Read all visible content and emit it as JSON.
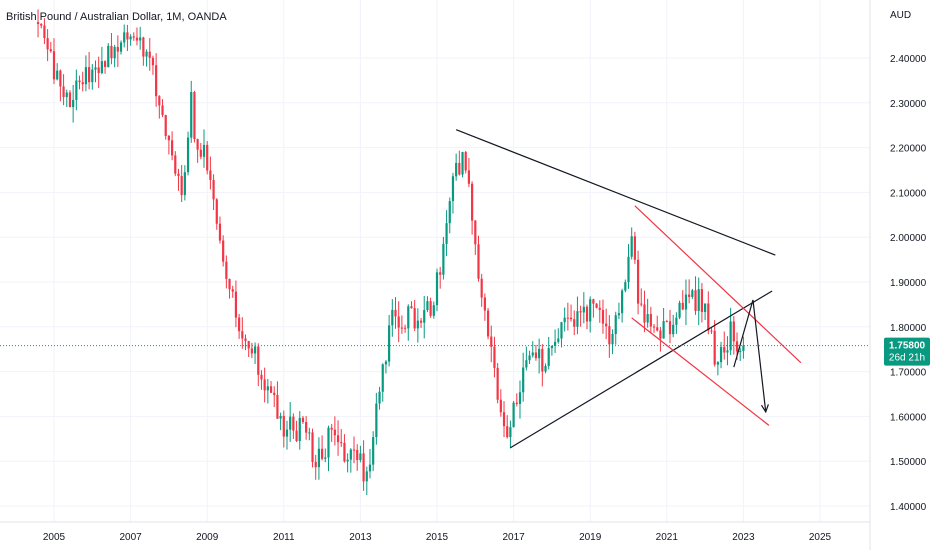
{
  "header": {
    "symbol_title": "British Pound / Australian Dollar, 1M, OANDA",
    "currency": "AUD"
  },
  "price_badge": {
    "price": "1.75800",
    "countdown": "26d 21h",
    "color": "#089981"
  },
  "colors": {
    "up": "#089981",
    "down": "#f23645",
    "background": "#ffffff",
    "trendline_black": "#131722",
    "channel_pink": "#f23645",
    "last_price_line": "#089981",
    "grid": "#f0f3fa"
  },
  "chart_data": {
    "type": "candlestick",
    "title": "British Pound / Australian Dollar, 1M, OANDA",
    "x_axis": {
      "type": "date",
      "range": [
        "2004-07",
        "2026-04"
      ],
      "tick_labels": [
        "2005",
        "2007",
        "2009",
        "2011",
        "2013",
        "2015",
        "2017",
        "2019",
        "2021",
        "2023",
        "2025"
      ]
    },
    "y_axis": {
      "unit": "AUD",
      "range": [
        1.36,
        2.49
      ],
      "tick_labels": [
        "2.40000",
        "2.30000",
        "2.20000",
        "2.10000",
        "2.00000",
        "1.90000",
        "1.80000",
        "1.70000",
        "1.60000",
        "1.50000",
        "1.40000"
      ],
      "position": "right"
    },
    "last_price": 1.758,
    "anchors": [
      [
        "2004-08",
        2.48
      ],
      [
        "2005-01",
        2.4
      ],
      [
        "2005-06",
        2.31
      ],
      [
        "2005-10",
        2.34
      ],
      [
        "2006-06",
        2.4
      ],
      [
        "2007-01",
        2.46
      ],
      [
        "2007-06",
        2.42
      ],
      [
        "2007-10",
        2.34
      ],
      [
        "2008-01",
        2.24
      ],
      [
        "2008-06",
        2.1
      ],
      [
        "2008-09",
        2.3
      ],
      [
        "2008-11",
        2.18
      ],
      [
        "2009-01",
        2.22
      ],
      [
        "2009-06",
        2.01
      ],
      [
        "2009-12",
        1.79
      ],
      [
        "2010-06",
        1.72
      ],
      [
        "2011-01",
        1.58
      ],
      [
        "2011-08",
        1.57
      ],
      [
        "2012-01",
        1.5
      ],
      [
        "2012-05",
        1.57
      ],
      [
        "2012-09",
        1.51
      ],
      [
        "2013-01",
        1.52
      ],
      [
        "2013-04",
        1.46
      ],
      [
        "2013-07",
        1.6
      ],
      [
        "2013-12",
        1.83
      ],
      [
        "2014-06",
        1.82
      ],
      [
        "2015-01",
        1.86
      ],
      [
        "2015-04",
        1.96
      ],
      [
        "2015-08",
        2.17
      ],
      [
        "2015-11",
        2.16
      ],
      [
        "2016-04",
        1.88
      ],
      [
        "2016-09",
        1.64
      ],
      [
        "2016-11",
        1.55
      ],
      [
        "2017-06",
        1.72
      ],
      [
        "2018-01",
        1.73
      ],
      [
        "2018-06",
        1.8
      ],
      [
        "2019-03",
        1.84
      ],
      [
        "2019-08",
        1.77
      ],
      [
        "2019-12",
        1.87
      ],
      [
        "2020-03",
        1.99
      ],
      [
        "2020-05",
        1.86
      ],
      [
        "2020-12",
        1.78
      ],
      [
        "2021-03",
        1.8
      ],
      [
        "2021-06",
        1.85
      ],
      [
        "2021-08",
        1.87
      ],
      [
        "2022-01",
        1.86
      ],
      [
        "2022-05",
        1.74
      ],
      [
        "2022-09",
        1.72
      ],
      [
        "2022-10",
        1.8
      ],
      [
        "2023-01",
        1.75
      ]
    ],
    "drawings": [
      {
        "type": "trendline",
        "color": "black",
        "from": [
          "2015-07",
          2.24
        ],
        "to": [
          "2023-11",
          1.96
        ]
      },
      {
        "type": "trendline",
        "color": "black",
        "from": [
          "2016-12",
          1.53
        ],
        "to": [
          "2023-10",
          1.88
        ]
      },
      {
        "type": "trendline",
        "color": "pink",
        "from": [
          "2020-03",
          2.07
        ],
        "to": [
          "2024-07",
          1.72
        ]
      },
      {
        "type": "trendline",
        "color": "pink",
        "from": [
          "2020-02",
          1.82
        ],
        "to": [
          "2023-09",
          1.58
        ]
      },
      {
        "type": "arrow",
        "color": "black",
        "points": [
          [
            "2022-10",
            1.71
          ],
          [
            "2023-04",
            1.86
          ],
          [
            "2023-08",
            1.61
          ]
        ]
      }
    ]
  }
}
